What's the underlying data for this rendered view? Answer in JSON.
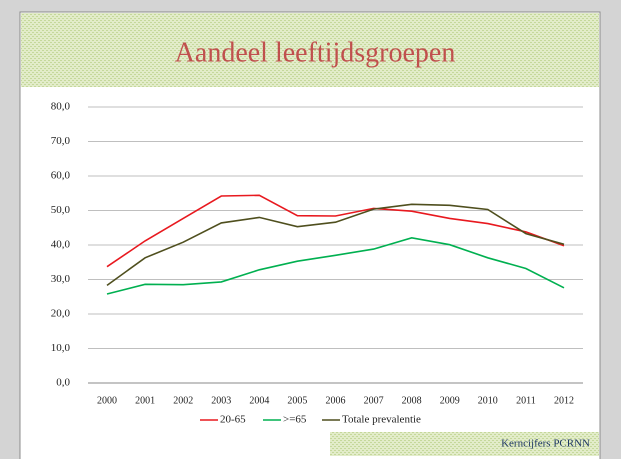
{
  "chart_data": {
    "type": "line",
    "title": "Aandeel leeftijdsgroepen",
    "footer": "Kerncijfers PCRNN",
    "categories": [
      "2000",
      "2001",
      "2002",
      "2003",
      "2004",
      "2005",
      "2006",
      "2007",
      "2008",
      "2009",
      "2010",
      "2011",
      "2012"
    ],
    "series": [
      {
        "name": "20-65",
        "color": "#e8191f",
        "values": [
          33.7,
          41.2,
          47.7,
          54.2,
          54.4,
          48.5,
          48.4,
          50.6,
          49.8,
          47.7,
          46.2,
          43.8,
          39.8
        ]
      },
      {
        "name": ">=65",
        "color": "#00b050",
        "values": [
          25.8,
          28.6,
          28.5,
          29.3,
          32.8,
          35.3,
          37.0,
          38.8,
          42.1,
          40.1,
          36.3,
          33.2,
          27.6
        ]
      },
      {
        "name": "Totale prevalentie",
        "color": "#4f4f1e",
        "values": [
          28.3,
          36.3,
          40.8,
          46.4,
          48.0,
          45.3,
          46.6,
          50.4,
          51.8,
          51.5,
          50.3,
          43.3,
          40.2
        ]
      }
    ],
    "ylim": [
      0,
      80
    ],
    "yticks": [
      {
        "value": 0,
        "label": "0,0"
      },
      {
        "value": 10,
        "label": "10,0"
      },
      {
        "value": 20,
        "label": "20,0"
      },
      {
        "value": 30,
        "label": "30,0"
      },
      {
        "value": 40,
        "label": "40,0"
      },
      {
        "value": 50,
        "label": "50,0"
      },
      {
        "value": 60,
        "label": "60,0"
      },
      {
        "value": 70,
        "label": "70,0"
      },
      {
        "value": 80,
        "label": "80,0"
      }
    ],
    "grid": true,
    "legend": "bottom"
  }
}
